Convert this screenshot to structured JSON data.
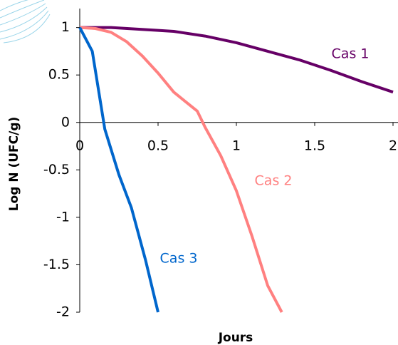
{
  "chart_data": {
    "type": "line",
    "x_label": "Jours",
    "y_label": "Log N (UFC/g)",
    "xlim": [
      0,
      2
    ],
    "ylim": [
      -2,
      1.2
    ],
    "xticks": [
      0,
      0.5,
      1,
      1.5,
      2
    ],
    "yticks": [
      -2,
      -1.5,
      -1,
      -0.5,
      0,
      0.5,
      1
    ],
    "series": [
      {
        "name": "Cas 1",
        "color": "#660066",
        "x": [
          0,
          0.2,
          0.35,
          0.5,
          0.6,
          0.8,
          1,
          1.2,
          1.4,
          1.6,
          1.8,
          2
        ],
        "values": [
          1,
          1,
          0.985,
          0.97,
          0.96,
          0.91,
          0.84,
          0.75,
          0.66,
          0.55,
          0.43,
          0.32
        ]
      },
      {
        "name": "Cas 2",
        "color": "#ff8080",
        "x": [
          0,
          0.1,
          0.2,
          0.3,
          0.4,
          0.5,
          0.6,
          0.75,
          0.8,
          0.9,
          1,
          1.1,
          1.2,
          1.29
        ],
        "values": [
          1,
          0.99,
          0.95,
          0.85,
          0.7,
          0.52,
          0.32,
          0.12,
          -0.05,
          -0.35,
          -0.72,
          -1.2,
          -1.72,
          -2
        ]
      },
      {
        "name": "Cas 3",
        "color": "#0066cc",
        "x": [
          0,
          0.08,
          0.16,
          0.25,
          0.33,
          0.42,
          0.5
        ],
        "values": [
          1,
          0.75,
          -0.07,
          -0.55,
          -0.9,
          -1.45,
          -2
        ]
      }
    ]
  }
}
